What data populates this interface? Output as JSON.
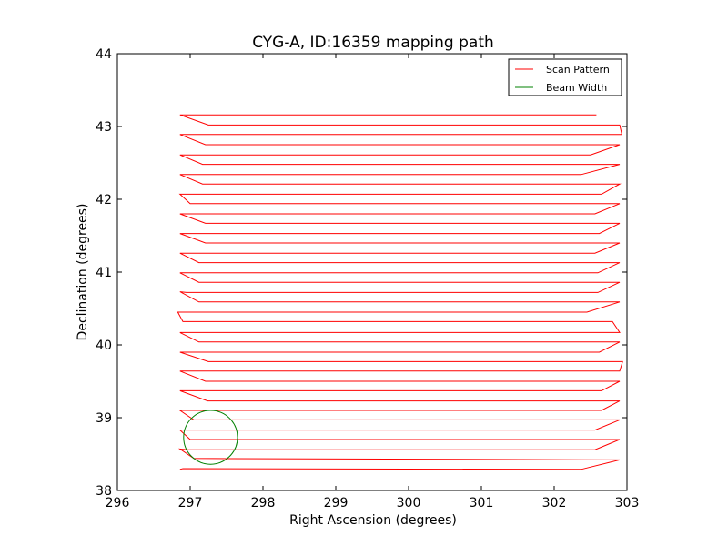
{
  "chart_data": {
    "type": "line",
    "title": "CYG-A, ID:16359 mapping path",
    "xlabel": "Right Ascension (degrees)",
    "ylabel": "Declination (degrees)",
    "xlim": [
      296,
      303
    ],
    "ylim": [
      38,
      44
    ],
    "xticks": [
      "296",
      "297",
      "298",
      "299",
      "300",
      "301",
      "302",
      "303"
    ],
    "yticks": [
      "38",
      "39",
      "40",
      "41",
      "42",
      "43",
      "44"
    ],
    "grid": false,
    "legend_position": "top-right",
    "series": [
      {
        "name": "Scan Pattern",
        "color": "#ff0000",
        "points": [
          [
            296.86,
            38.29
          ],
          [
            296.9,
            38.3
          ],
          [
            302.37,
            38.29
          ],
          [
            302.9,
            38.42
          ],
          [
            297.05,
            38.44
          ],
          [
            296.86,
            38.57
          ],
          [
            296.97,
            38.56
          ],
          [
            302.56,
            38.56
          ],
          [
            302.9,
            38.7
          ],
          [
            297.0,
            38.7
          ],
          [
            296.86,
            38.83
          ],
          [
            302.56,
            38.83
          ],
          [
            302.9,
            38.97
          ],
          [
            297.05,
            38.97
          ],
          [
            296.86,
            39.1
          ],
          [
            297.21,
            39.1
          ],
          [
            302.65,
            39.1
          ],
          [
            302.9,
            39.23
          ],
          [
            297.24,
            39.23
          ],
          [
            296.86,
            39.37
          ],
          [
            297.21,
            39.37
          ],
          [
            302.65,
            39.37
          ],
          [
            302.9,
            39.5
          ],
          [
            297.21,
            39.5
          ],
          [
            296.86,
            39.64
          ],
          [
            297.21,
            39.64
          ],
          [
            302.9,
            39.64
          ],
          [
            302.94,
            39.77
          ],
          [
            297.25,
            39.77
          ],
          [
            296.86,
            39.9
          ],
          [
            297.12,
            39.9
          ],
          [
            302.62,
            39.9
          ],
          [
            302.9,
            40.04
          ],
          [
            297.12,
            40.04
          ],
          [
            296.86,
            40.17
          ],
          [
            302.9,
            40.17
          ],
          [
            302.8,
            40.32
          ],
          [
            296.9,
            40.32
          ],
          [
            296.83,
            40.45
          ],
          [
            302.45,
            40.45
          ],
          [
            302.9,
            40.59
          ],
          [
            297.12,
            40.59
          ],
          [
            296.86,
            40.73
          ],
          [
            296.95,
            40.72
          ],
          [
            302.6,
            40.72
          ],
          [
            302.9,
            40.86
          ],
          [
            297.12,
            40.86
          ],
          [
            296.86,
            40.99
          ],
          [
            297.12,
            40.99
          ],
          [
            302.6,
            40.99
          ],
          [
            302.9,
            41.13
          ],
          [
            297.12,
            41.13
          ],
          [
            296.86,
            41.26
          ],
          [
            302.56,
            41.26
          ],
          [
            302.9,
            41.4
          ],
          [
            297.21,
            41.4
          ],
          [
            296.86,
            41.53
          ],
          [
            302.62,
            41.53
          ],
          [
            302.9,
            41.67
          ],
          [
            297.21,
            41.67
          ],
          [
            296.86,
            41.8
          ],
          [
            302.56,
            41.8
          ],
          [
            302.9,
            41.94
          ],
          [
            297.0,
            41.94
          ],
          [
            296.86,
            42.07
          ],
          [
            302.65,
            42.07
          ],
          [
            302.9,
            42.21
          ],
          [
            297.17,
            42.21
          ],
          [
            296.86,
            42.34
          ],
          [
            302.37,
            42.34
          ],
          [
            302.9,
            42.48
          ],
          [
            297.17,
            42.48
          ],
          [
            296.86,
            42.61
          ],
          [
            302.5,
            42.61
          ],
          [
            302.9,
            42.75
          ],
          [
            297.21,
            42.75
          ],
          [
            296.86,
            42.89
          ],
          [
            302.93,
            42.89
          ],
          [
            302.9,
            43.02
          ],
          [
            297.25,
            43.02
          ],
          [
            296.86,
            43.16
          ],
          [
            302.58,
            43.16
          ]
        ]
      },
      {
        "name": "Beam Width",
        "color": "#008000",
        "circle": {
          "cx": 297.28,
          "cy": 38.73,
          "r": 0.37
        }
      }
    ]
  }
}
